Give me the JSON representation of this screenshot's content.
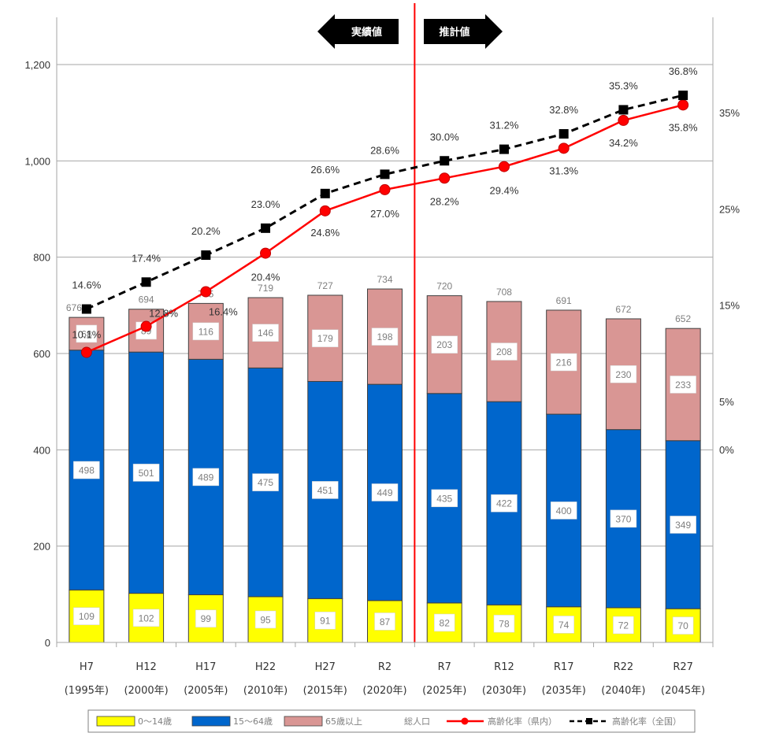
{
  "chart_data": {
    "type": "bar",
    "stacked": true,
    "categories": [
      "H7",
      "H12",
      "H17",
      "H22",
      "H27",
      "R2",
      "R7",
      "R12",
      "R17",
      "R22",
      "R27"
    ],
    "category_years": [
      "(1995年)",
      "(2000年)",
      "(2005年)",
      "(2010年)",
      "(2015年)",
      "(2020年)",
      "(2025年)",
      "(2030年)",
      "(2035年)",
      "(2040年)",
      "(2045年)"
    ],
    "series": [
      {
        "name": "0～14歳",
        "color": "#ffff00",
        "values": [
          109,
          102,
          99,
          95,
          91,
          87,
          82,
          78,
          74,
          72,
          70
        ]
      },
      {
        "name": "15～64歳",
        "color": "#0066cc",
        "values": [
          498,
          501,
          489,
          475,
          451,
          449,
          435,
          422,
          400,
          370,
          349
        ]
      },
      {
        "name": "65歳以上",
        "color": "#d99694",
        "values": [
          68,
          89,
          116,
          146,
          179,
          198,
          203,
          208,
          216,
          230,
          233
        ]
      }
    ],
    "totals_label": "総人口",
    "totals": [
      676,
      694,
      705,
      719,
      727,
      734,
      720,
      708,
      691,
      672,
      652
    ],
    "lines": [
      {
        "name": "高齢化率（県内）",
        "color": "#ff0000",
        "style": "solid",
        "values": [
          10.1,
          12.8,
          16.4,
          20.4,
          24.8,
          27.0,
          28.2,
          29.4,
          31.3,
          34.2,
          35.8
        ],
        "labels": [
          "10.1%",
          "12.8%",
          "16.4%",
          "20.4%",
          "24.8%",
          "27.0%",
          "28.2%",
          "29.4%",
          "31.3%",
          "34.2%",
          "35.8%"
        ]
      },
      {
        "name": "高齢化率（全国）",
        "color": "#000000",
        "style": "dashed",
        "values": [
          14.6,
          17.4,
          20.2,
          23.0,
          26.6,
          28.6,
          30.0,
          31.2,
          32.8,
          35.3,
          36.8
        ],
        "labels": [
          "14.6%",
          "17.4%",
          "20.2%",
          "23.0%",
          "26.6%",
          "28.6%",
          "30.0%",
          "31.2%",
          "32.8%",
          "35.3%",
          "36.8%"
        ]
      }
    ],
    "y_left": {
      "ylim": [
        0,
        1200
      ],
      "ticks": [
        0,
        200,
        400,
        600,
        800,
        1000,
        1200
      ],
      "tick_labels": [
        "0",
        "200",
        "400",
        "600",
        "800",
        "1,000",
        "1,200"
      ]
    },
    "y_right": {
      "ylim": [
        0,
        35
      ],
      "ticks": [
        0,
        5,
        15,
        25,
        35
      ],
      "tick_labels": [
        "0%",
        "5%",
        "15%",
        "25%",
        "35%"
      ]
    },
    "annotations": {
      "actual_label": "実績値",
      "projected_label": "推計値",
      "divider_between": [
        "R2",
        "R7"
      ]
    },
    "grid": true,
    "legend_position": "bottom"
  }
}
